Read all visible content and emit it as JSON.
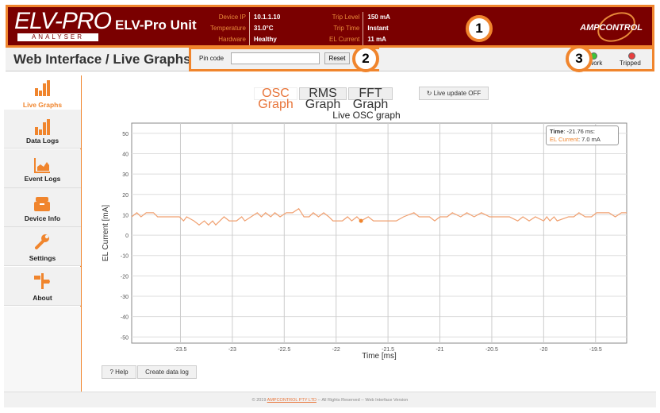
{
  "header": {
    "logo_text": "ELV-PRO",
    "logo_sub": "ANALYSER",
    "unit_name": "ELV-Pro Unit",
    "info_left": [
      {
        "k": "Device IP",
        "v": "10.1.1.10"
      },
      {
        "k": "Temperature",
        "v": "31.0°C"
      },
      {
        "k": "Hardware",
        "v": "Healthy"
      }
    ],
    "info_right": [
      {
        "k": "Trip Level",
        "v": "150 mA"
      },
      {
        "k": "Trip Time",
        "v": "Instant"
      },
      {
        "k": "EL Current",
        "v": "11 mA"
      }
    ],
    "brand": "AMPCONTROL"
  },
  "annotations": [
    "1",
    "2",
    "3"
  ],
  "subheader": {
    "title": "Web Interface / Live Graphs",
    "pin_label": "Pin code",
    "pin_value": "",
    "reset_label": "Reset",
    "status": [
      {
        "label": "Network",
        "color": "#3cc33c"
      },
      {
        "label": "Tripped",
        "color": "#e84040"
      }
    ]
  },
  "sidebar": {
    "items": [
      {
        "label": "Live Graphs",
        "icon": "bar-chart-icon",
        "active": true
      },
      {
        "label": "Data Logs",
        "icon": "bar-chart-icon"
      },
      {
        "label": "Event Logs",
        "icon": "area-chart-icon"
      },
      {
        "label": "Device Info",
        "icon": "archive-icon"
      },
      {
        "label": "Settings",
        "icon": "wrench-icon"
      },
      {
        "label": "About",
        "icon": "signpost-icon"
      }
    ]
  },
  "tabs": [
    {
      "label": "OSC Graph",
      "active": true
    },
    {
      "label": "RMS Graph"
    },
    {
      "label": "FFT Graph"
    }
  ],
  "live_update_label": "↻ Live update OFF",
  "tooltip": {
    "time_label": "Time",
    "time_value": "-21.76 ms:",
    "series_label": "EL Current",
    "series_value": "7.0 mA"
  },
  "buttons": {
    "help": "? Help",
    "create_log": "Create data log"
  },
  "footer": {
    "prefix": "© 2019",
    "link": "AMPCONTROL PTY LTD",
    "suffix": "-- All Rights Reserved -- Web Interface Version"
  },
  "colors": {
    "accent": "#f0852d",
    "header_bg": "#7a0000",
    "line": "#f0a070"
  },
  "chart_data": {
    "type": "line",
    "title": "Live OSC graph",
    "xlabel": "Time [ms]",
    "ylabel": "EL Current [mA]",
    "xlim": [
      -23.97,
      -19.2
    ],
    "ylim": [
      -53,
      55
    ],
    "xticks": [
      -23.5,
      -23,
      -22.5,
      -22,
      -21.5,
      -21,
      -20.5,
      -20,
      -19.5
    ],
    "yticks": [
      50,
      40,
      30,
      20,
      10,
      0,
      -10,
      -20,
      -30,
      -40,
      -50
    ],
    "grid": true,
    "highlight": {
      "x": -21.76,
      "y": 7.0
    },
    "series": [
      {
        "name": "EL Current",
        "x": [
          -23.97,
          -23.92,
          -23.88,
          -23.83,
          -23.76,
          -23.72,
          -23.51,
          -23.47,
          -23.44,
          -23.37,
          -23.32,
          -23.27,
          -23.23,
          -23.19,
          -23.16,
          -23.08,
          -23.03,
          -22.96,
          -22.91,
          -22.88,
          -22.82,
          -22.76,
          -22.72,
          -22.68,
          -22.63,
          -22.59,
          -22.54,
          -22.48,
          -22.42,
          -22.36,
          -22.31,
          -22.26,
          -22.22,
          -22.17,
          -22.12,
          -22.07,
          -22.03,
          -21.94,
          -21.89,
          -21.85,
          -21.8,
          -21.76,
          -21.69,
          -21.64,
          -21.42,
          -21.35,
          -21.25,
          -21.2,
          -21.1,
          -21.05,
          -21.0,
          -20.93,
          -20.88,
          -20.8,
          -20.74,
          -20.67,
          -20.6,
          -20.52,
          -20.33,
          -20.25,
          -20.2,
          -20.14,
          -20.08,
          -20.0,
          -19.97,
          -19.94,
          -19.9,
          -19.87,
          -19.76,
          -19.71,
          -19.66,
          -19.6,
          -19.54,
          -19.49,
          -19.37,
          -19.31,
          -19.25,
          -19.2
        ],
        "y": [
          9,
          11,
          9,
          11,
          11,
          9,
          9,
          7,
          9,
          7,
          5,
          7,
          5,
          7,
          5,
          9,
          7,
          7,
          9,
          7,
          9,
          11,
          9,
          11,
          9,
          11,
          9,
          11,
          11,
          13,
          9,
          9,
          11,
          9,
          11,
          9,
          7,
          7,
          9,
          7,
          9,
          7,
          9,
          7,
          7,
          9,
          11,
          9,
          9,
          7,
          9,
          9,
          11,
          9,
          11,
          9,
          11,
          9,
          9,
          7,
          9,
          7,
          9,
          7,
          9,
          7,
          9,
          7,
          9,
          9,
          11,
          9,
          9,
          11,
          11,
          9,
          11,
          11
        ]
      }
    ]
  }
}
